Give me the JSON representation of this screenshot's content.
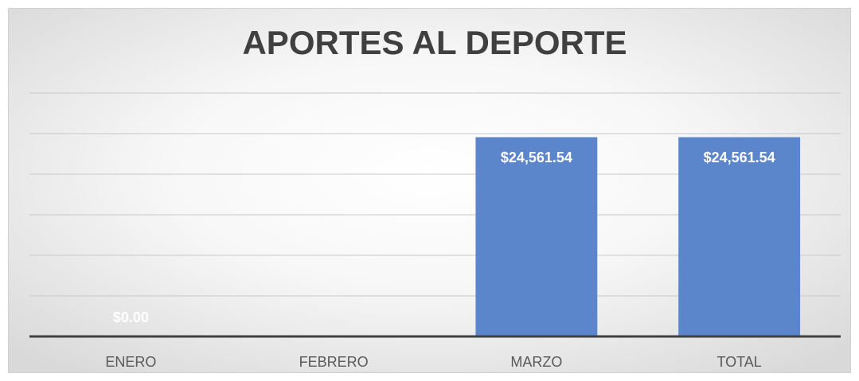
{
  "chart_data": {
    "type": "bar",
    "title": "APORTES AL DEPORTE",
    "categories": [
      "ENERO",
      "FEBRERO",
      "MARZO",
      "TOTAL"
    ],
    "values": [
      0,
      null,
      24561.54,
      24561.54
    ],
    "value_labels": [
      "$0.00",
      null,
      "$24,561.54",
      "$24,561.54"
    ],
    "color": "#5b86cc",
    "ylim": [
      0,
      30000
    ],
    "yticks": [
      0,
      5000,
      10000,
      15000,
      20000,
      25000,
      30000
    ],
    "grid": true
  }
}
